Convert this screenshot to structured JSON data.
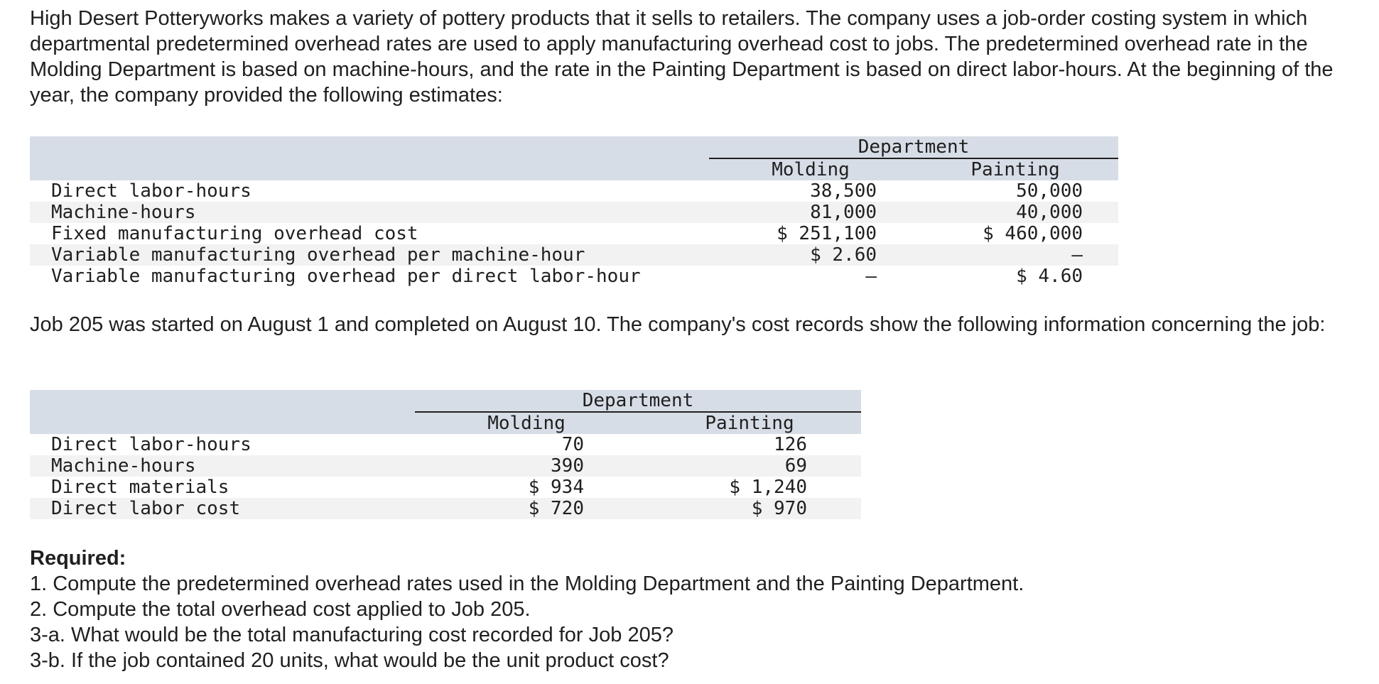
{
  "intro_paragraph": "High Desert Potteryworks makes a variety of pottery products that it sells to retailers. The company uses a job-order costing system in which departmental predetermined overhead rates are used to apply manufacturing overhead cost to jobs. The predetermined overhead rate in the Molding Department is based on machine-hours, and the rate in the Painting Department is based on direct labor-hours. At the beginning of the year, the company provided the following estimates:",
  "estimates_table": {
    "group_header": "Department",
    "columns": [
      "Molding",
      "Painting"
    ],
    "rows": [
      {
        "label": "Direct labor-hours",
        "molding": "38,500",
        "painting": "50,000"
      },
      {
        "label": "Machine-hours",
        "molding": "81,000",
        "painting": "40,000"
      },
      {
        "label": "Fixed manufacturing overhead cost",
        "molding": "$ 251,100",
        "painting": "$ 460,000"
      },
      {
        "label": "Variable manufacturing overhead per machine-hour",
        "molding": "$ 2.60",
        "painting": "–"
      },
      {
        "label": "Variable manufacturing overhead per direct labor-hour",
        "molding": "–",
        "painting": "$ 4.60"
      }
    ]
  },
  "job_paragraph": "Job 205 was started on August 1 and completed on August 10. The company's cost records show the following information concerning the job:",
  "job_table": {
    "group_header": "Department",
    "columns": [
      "Molding",
      "Painting"
    ],
    "rows": [
      {
        "label": "Direct labor-hours",
        "molding": "70",
        "painting": "126"
      },
      {
        "label": "Machine-hours",
        "molding": "390",
        "painting": "69"
      },
      {
        "label": "Direct materials",
        "molding": "$ 934",
        "painting": "$ 1,240"
      },
      {
        "label": "Direct labor cost",
        "molding": "$ 720",
        "painting": "$ 970"
      }
    ]
  },
  "required": {
    "title": "Required:",
    "items": [
      "1. Compute the predetermined overhead rates used in the Molding Department and the Painting Department.",
      "2. Compute the total overhead cost applied to Job 205.",
      "3-a. What would be the total manufacturing cost recorded for Job 205?",
      "3-b. If the job contained 20 units, what would be the unit product cost?"
    ]
  }
}
